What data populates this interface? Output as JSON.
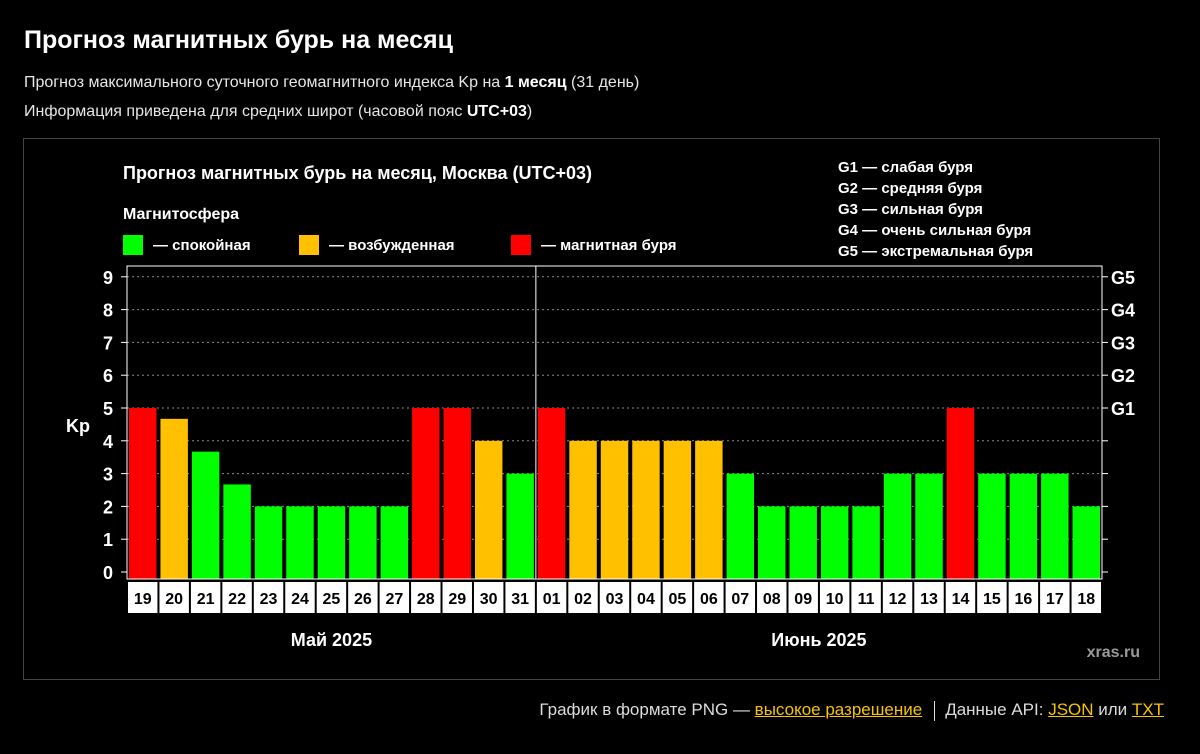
{
  "page": {
    "title": "Прогноз магнитных бурь на месяц",
    "subtitle1": {
      "pre": "Прогноз максимального суточного геомагнитного индекса Kp на ",
      "bold": "1 месяц",
      "post": " (31 день)"
    },
    "subtitle2": {
      "pre": "Информация приведена для средних широт (часовой пояс ",
      "bold": "UTC+03",
      "post": ")"
    }
  },
  "chart_data": {
    "type": "bar",
    "title": "Прогноз магнитных бурь на месяц, Москва (UTC+03)",
    "legend_title": "Магнитосфера",
    "legend": [
      {
        "label": "— спокойная",
        "color": "#00ff00"
      },
      {
        "label": "— возбужденная",
        "color": "#ffc000"
      },
      {
        "label": "— магнитная буря",
        "color": "#ff0000"
      }
    ],
    "g_scale": [
      "G1 — слабая буря",
      "G2 — средняя буря",
      "G3 — сильная буря",
      "G4 — очень сильная буря",
      "G5 — экстремальная буря"
    ],
    "ylabel": "Kp",
    "ylim": [
      0,
      9
    ],
    "yticks": [
      "0",
      "1",
      "2",
      "3",
      "4",
      "5",
      "6",
      "7",
      "8",
      "9"
    ],
    "right_ticks": [
      "G1",
      "G2",
      "G3",
      "G4",
      "G5"
    ],
    "grid": true,
    "months": [
      "Май 2025",
      "Июнь 2025"
    ],
    "categories": [
      "19",
      "20",
      "21",
      "22",
      "23",
      "24",
      "25",
      "26",
      "27",
      "28",
      "29",
      "30",
      "31",
      "01",
      "02",
      "03",
      "04",
      "05",
      "06",
      "07",
      "08",
      "09",
      "10",
      "11",
      "12",
      "13",
      "14",
      "15",
      "16",
      "17",
      "18"
    ],
    "values": [
      5,
      4.67,
      3.67,
      2.67,
      2,
      2,
      2,
      2,
      2,
      5,
      5,
      4,
      3,
      5,
      4,
      4,
      4,
      4,
      4,
      3,
      2,
      2,
      2,
      2,
      3,
      3,
      5,
      3,
      3,
      3,
      2
    ],
    "colors": {
      "quiet": "#00ff00",
      "unsettled": "#ffc000",
      "storm": "#ff0000"
    },
    "watermark": "xras.ru"
  },
  "footer": {
    "png_text": "График в формате PNG — ",
    "png_link": "высокое разрешение",
    "api_text": "Данные API: ",
    "json_link": "JSON",
    "or_text": " или ",
    "txt_link": "TXT"
  }
}
